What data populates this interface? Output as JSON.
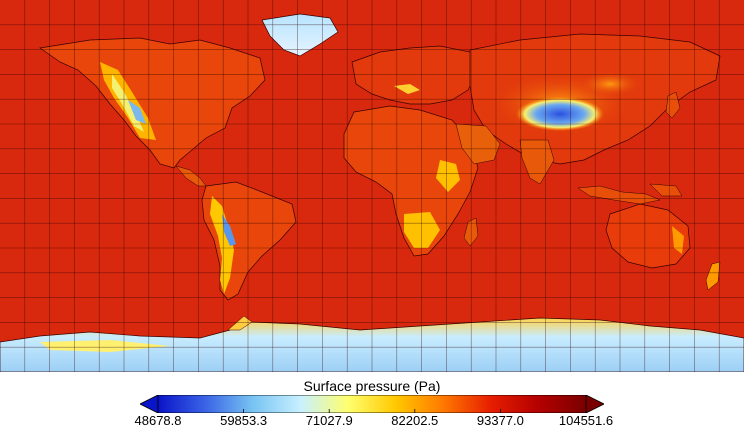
{
  "colorbar": {
    "title": "Surface pressure (Pa)",
    "ticks": [
      "48678.8",
      "59853.3",
      "71027.9",
      "82202.5",
      "93377.0",
      "104551.6"
    ],
    "tick_values": [
      48678.8,
      59853.3,
      71027.9,
      82202.5,
      93377.0,
      104551.6
    ],
    "extend": "both",
    "colors": [
      "#0a14c8",
      "#3a64e6",
      "#78c4f2",
      "#c8f0ff",
      "#ffff6e",
      "#ffc800",
      "#ff7800",
      "#e61e00",
      "#b40000",
      "#7a0000"
    ]
  },
  "map": {
    "ocean_color": "#d8290e",
    "grid": true,
    "projection": "equirectangular",
    "coastlines": true
  }
}
